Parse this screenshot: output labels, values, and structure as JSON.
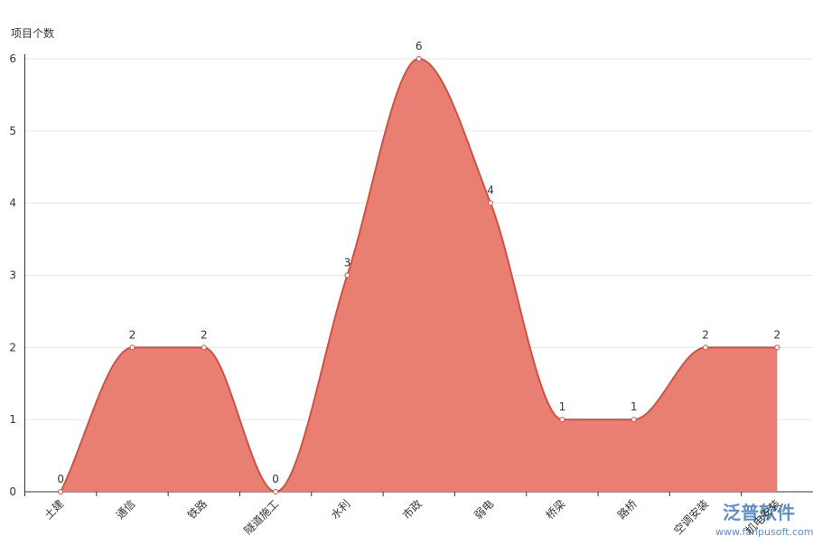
{
  "chart_data": {
    "type": "area",
    "y_axis_label": "项目个数",
    "categories": [
      "土建",
      "通信",
      "铁路",
      "隧道施工",
      "水利",
      "市政",
      "弱电",
      "桥梁",
      "路桥",
      "空调安装",
      "机电安装"
    ],
    "values": [
      0,
      2,
      2,
      0,
      3,
      6,
      4,
      1,
      1,
      2,
      2
    ],
    "color": "#e8776c",
    "line_color": "#d2503f",
    "ylim": [
      0,
      6
    ],
    "yticks": [
      0,
      1,
      2,
      3,
      4,
      5,
      6
    ],
    "grid": true,
    "smooth": true
  },
  "watermark": {
    "brand": "泛普软件",
    "url": "www.fanpusoft.com"
  }
}
